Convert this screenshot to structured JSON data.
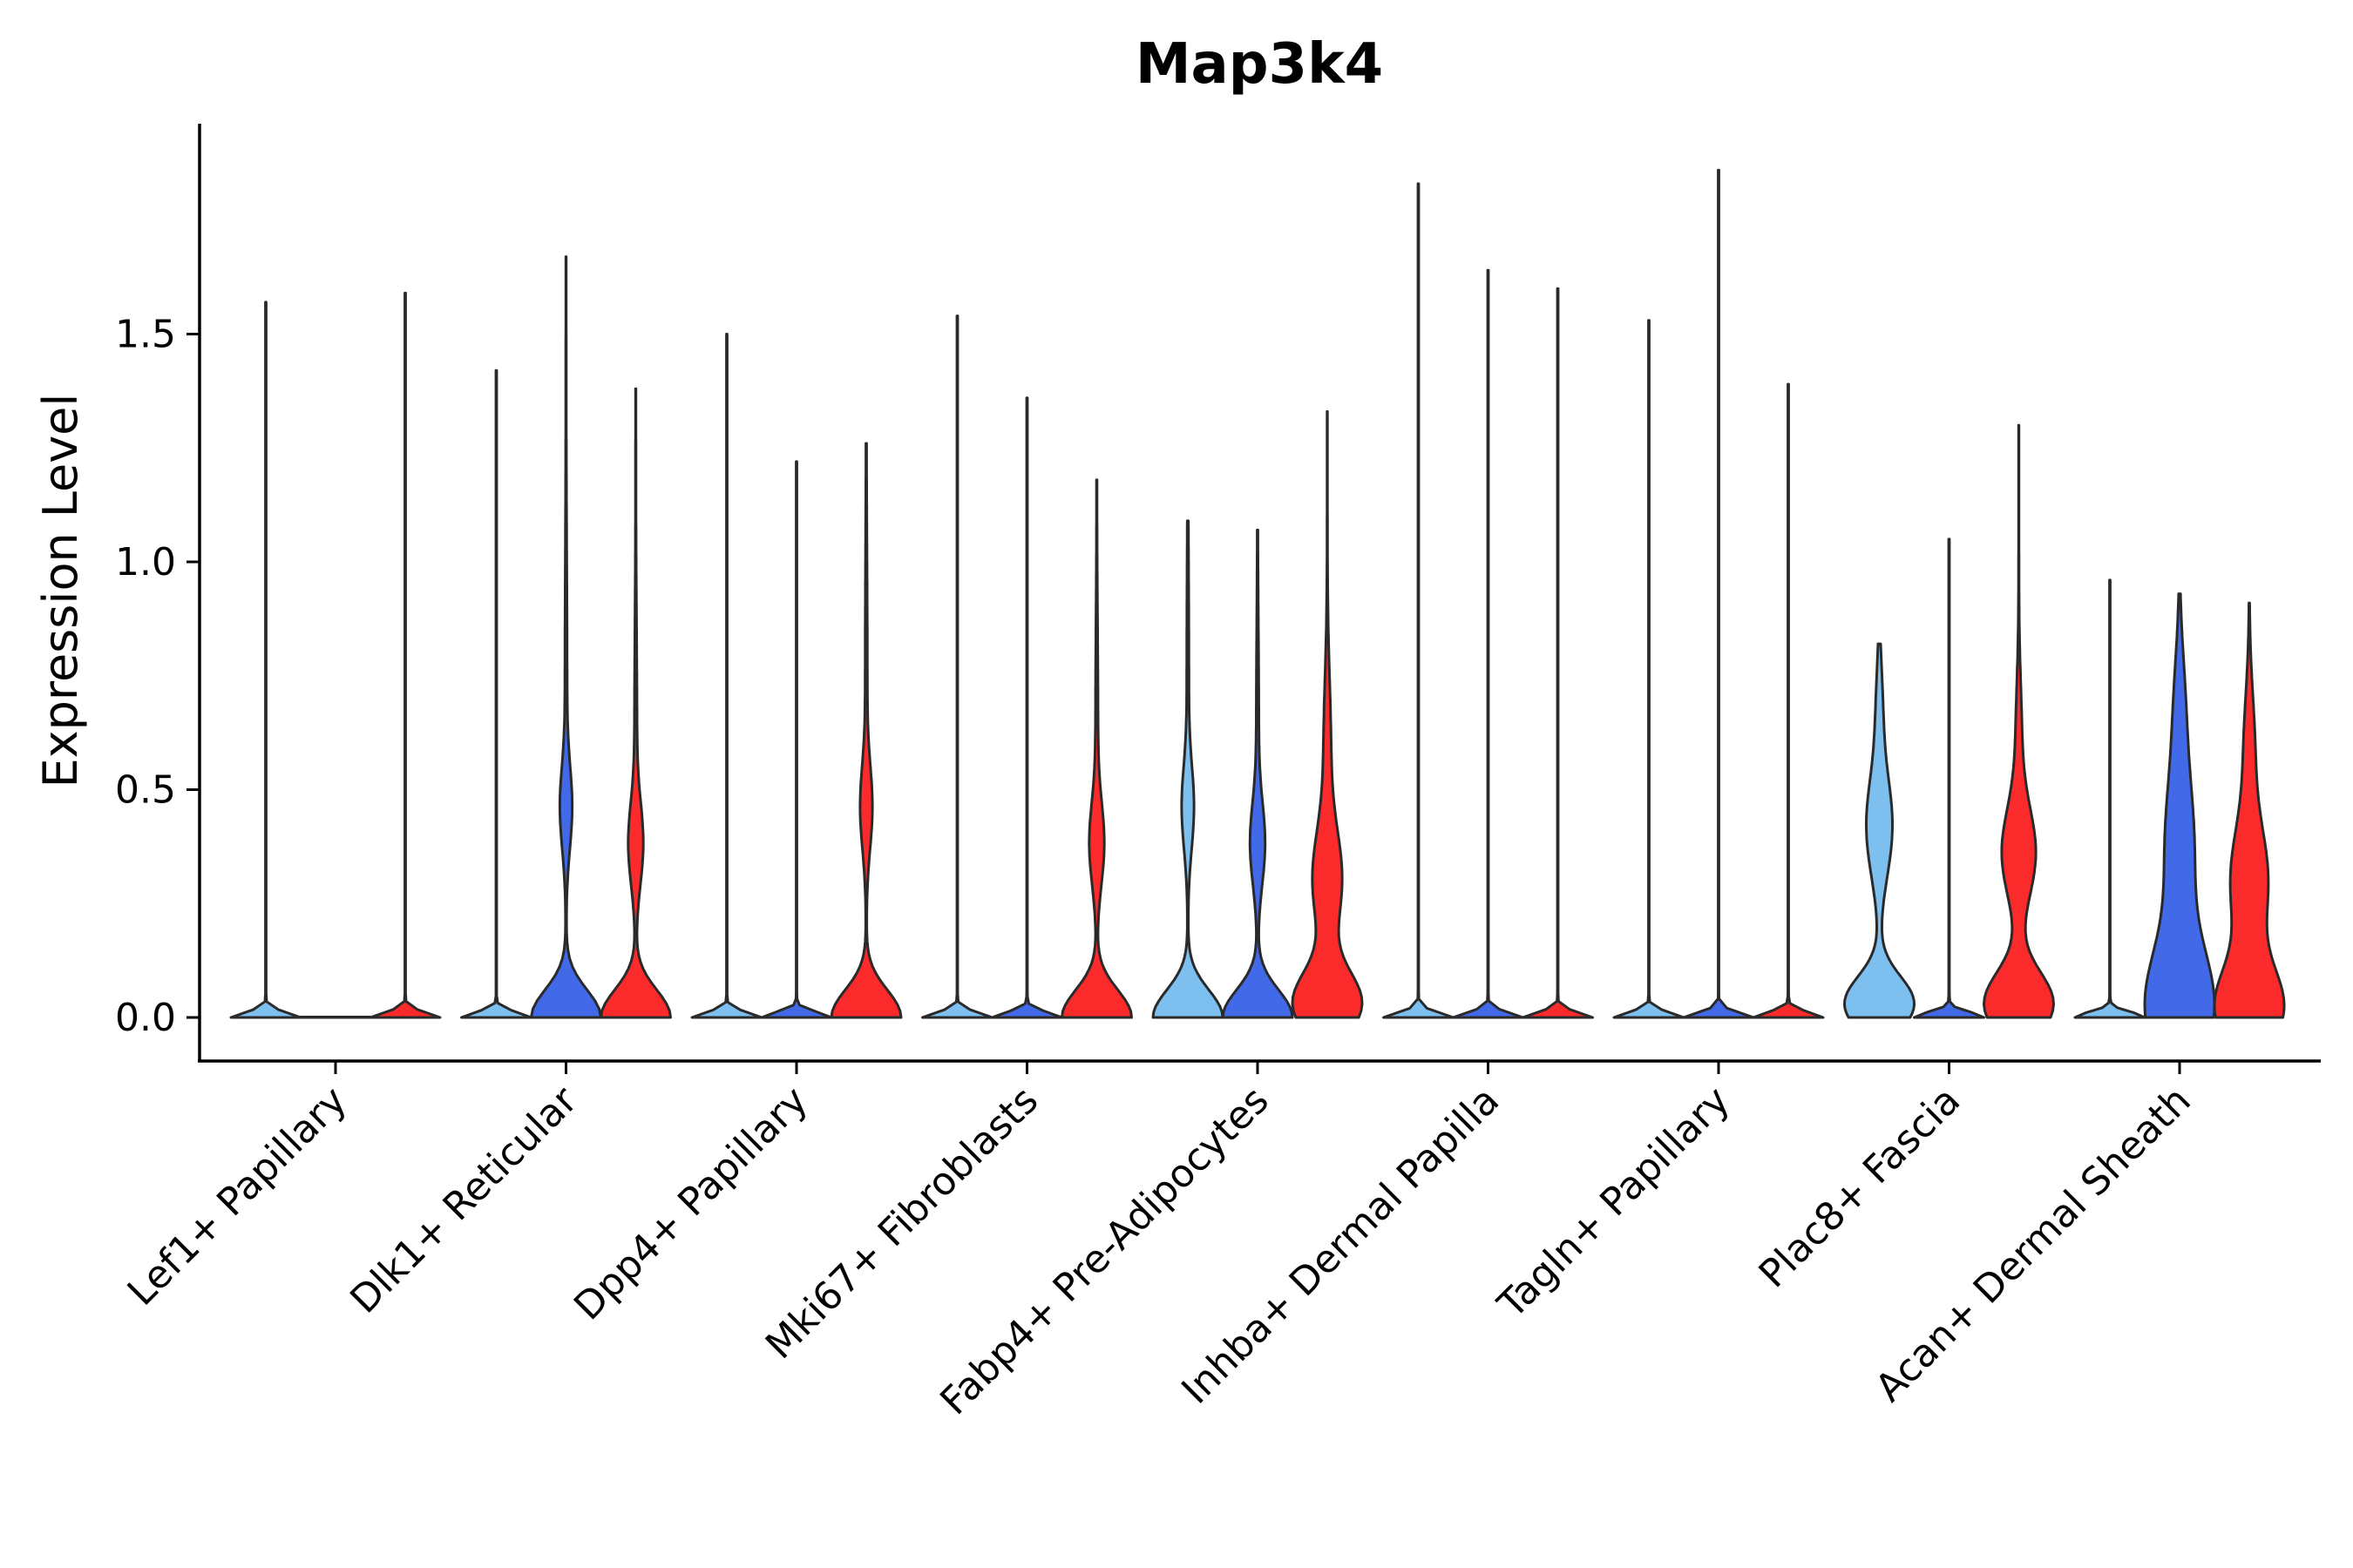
{
  "chart_data": {
    "type": "violin",
    "title": "Map3k4",
    "xlabel": "",
    "ylabel": "Expression Level",
    "ylim": [
      -0.095,
      1.97
    ],
    "yticks": [
      0.0,
      0.5,
      1.0,
      1.5
    ],
    "ytick_labels": [
      "0.0",
      "0.5",
      "1.0",
      "1.5"
    ],
    "grid": false,
    "legend": "none",
    "group_colors": {
      "light-blue": "#7dbfef",
      "blue": "#4169e8",
      "red": "#fc2b2b"
    },
    "categories": [
      "Lef1+ Papillary",
      "Dlk1+ Reticular",
      "Dpp4+ Papillary",
      "Mki67+ Fibroblasts",
      "Fabp4+ Pre-Adipocytes",
      "Inhba+ Dermal Papilla",
      "Tagln+ Papillary",
      "Plac8+ Fascia",
      "Acan+ Dermal Sheath"
    ],
    "violins": [
      {
        "category": "Lef1+ Papillary",
        "group": "light-blue",
        "max": 1.57,
        "profile": "flat"
      },
      {
        "category": "Lef1+ Papillary",
        "group": "blue",
        "max": 0.0,
        "profile": "flat"
      },
      {
        "category": "Lef1+ Papillary",
        "group": "red",
        "max": 1.59,
        "profile": "flat"
      },
      {
        "category": "Dlk1+ Reticular",
        "group": "light-blue",
        "max": 1.42,
        "profile": "flat"
      },
      {
        "category": "Dlk1+ Reticular",
        "group": "blue",
        "max": 1.67,
        "profile": "bimodal-high"
      },
      {
        "category": "Dlk1+ Reticular",
        "group": "red",
        "max": 1.38,
        "profile": "bimodal-mid"
      },
      {
        "category": "Dpp4+ Papillary",
        "group": "light-blue",
        "max": 1.5,
        "profile": "flat"
      },
      {
        "category": "Dpp4+ Papillary",
        "group": "blue",
        "max": 1.22,
        "profile": "flat"
      },
      {
        "category": "Dpp4+ Papillary",
        "group": "red",
        "max": 1.26,
        "profile": "bimodal-high"
      },
      {
        "category": "Mki67+ Fibroblasts",
        "group": "light-blue",
        "max": 1.54,
        "profile": "flat"
      },
      {
        "category": "Mki67+ Fibroblasts",
        "group": "blue",
        "max": 1.36,
        "profile": "flat"
      },
      {
        "category": "Mki67+ Fibroblasts",
        "group": "red",
        "max": 1.18,
        "profile": "bimodal-mid"
      },
      {
        "category": "Fabp4+ Pre-Adipocytes",
        "group": "light-blue",
        "max": 1.09,
        "profile": "bimodal-high"
      },
      {
        "category": "Fabp4+ Pre-Adipocytes",
        "group": "blue",
        "max": 1.07,
        "profile": "bimodal-mid"
      },
      {
        "category": "Fabp4+ Pre-Adipocytes",
        "group": "red",
        "max": 1.33,
        "profile": "broad"
      },
      {
        "category": "Inhba+ Dermal Papilla",
        "group": "light-blue",
        "max": 1.83,
        "profile": "flat"
      },
      {
        "category": "Inhba+ Dermal Papilla",
        "group": "blue",
        "max": 1.64,
        "profile": "flat"
      },
      {
        "category": "Inhba+ Dermal Papilla",
        "group": "red",
        "max": 1.6,
        "profile": "flat"
      },
      {
        "category": "Tagln+ Papillary",
        "group": "light-blue",
        "max": 1.53,
        "profile": "flat"
      },
      {
        "category": "Tagln+ Papillary",
        "group": "blue",
        "max": 1.86,
        "profile": "flat"
      },
      {
        "category": "Tagln+ Papillary",
        "group": "red",
        "max": 1.39,
        "profile": "flat"
      },
      {
        "category": "Plac8+ Fascia",
        "group": "light-blue",
        "max": 0.82,
        "profile": "wide-bimodal"
      },
      {
        "category": "Plac8+ Fascia",
        "group": "blue",
        "max": 1.05,
        "profile": "flat"
      },
      {
        "category": "Plac8+ Fascia",
        "group": "red",
        "max": 1.3,
        "profile": "broad-mid"
      },
      {
        "category": "Acan+ Dermal Sheath",
        "group": "light-blue",
        "max": 0.96,
        "profile": "flat"
      },
      {
        "category": "Acan+ Dermal Sheath",
        "group": "blue",
        "max": 0.93,
        "profile": "wide-blob"
      },
      {
        "category": "Acan+ Dermal Sheath",
        "group": "red",
        "max": 0.91,
        "profile": "wide-blob-red"
      }
    ]
  }
}
